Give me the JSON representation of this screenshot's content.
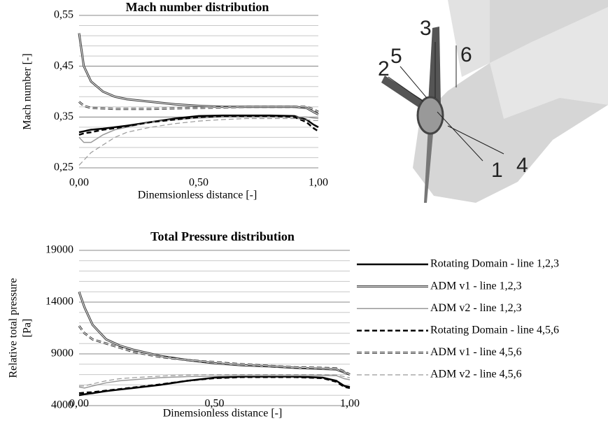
{
  "chart_data": [
    {
      "type": "line",
      "title": "Mach number distribution",
      "xlabel": "Dinemsionless distance [-]",
      "ylabel": "Mach number [-]",
      "x": [
        0,
        0.02,
        0.05,
        0.1,
        0.15,
        0.2,
        0.3,
        0.4,
        0.5,
        0.6,
        0.7,
        0.8,
        0.9,
        0.95,
        0.98,
        1.0
      ],
      "xlim": [
        0,
        1
      ],
      "xticks": [
        {
          "value": 0,
          "label": "0,00"
        },
        {
          "value": 0.5,
          "label": "0,50"
        },
        {
          "value": 1,
          "label": "1,00"
        }
      ],
      "ylim": [
        0.25,
        0.55
      ],
      "yticks": [
        {
          "value": 0.25,
          "label": "0,25"
        },
        {
          "value": 0.35,
          "label": "0,35"
        },
        {
          "value": 0.45,
          "label": "0,45"
        },
        {
          "value": 0.55,
          "label": "0,55"
        }
      ],
      "grid": true,
      "minor_step": 0.02,
      "series": [
        {
          "color": "#000000",
          "style": "solid",
          "width": 2.5,
          "values": [
            0.32,
            0.322,
            0.325,
            0.327,
            0.33,
            0.333,
            0.34,
            0.347,
            0.352,
            0.353,
            0.353,
            0.353,
            0.352,
            0.345,
            0.335,
            0.33
          ]
        },
        {
          "color": "#333333",
          "style": "double",
          "width": 3,
          "values": [
            0.515,
            0.45,
            0.42,
            0.4,
            0.39,
            0.385,
            0.38,
            0.375,
            0.372,
            0.37,
            0.37,
            0.37,
            0.37,
            0.368,
            0.36,
            0.355
          ]
        },
        {
          "color": "#999999",
          "style": "solid",
          "width": 1.5,
          "values": [
            0.31,
            0.3,
            0.3,
            0.315,
            0.325,
            0.33,
            0.34,
            0.345,
            0.348,
            0.35,
            0.35,
            0.35,
            0.35,
            0.35,
            0.348,
            0.347
          ]
        },
        {
          "color": "#000000",
          "style": "dashed",
          "width": 2.5,
          "values": [
            0.315,
            0.318,
            0.32,
            0.325,
            0.328,
            0.332,
            0.34,
            0.345,
            0.35,
            0.352,
            0.352,
            0.352,
            0.35,
            0.34,
            0.328,
            0.322
          ]
        },
        {
          "color": "#333333",
          "style": "double-dashed",
          "width": 3,
          "values": [
            0.38,
            0.372,
            0.368,
            0.367,
            0.366,
            0.366,
            0.366,
            0.367,
            0.368,
            0.369,
            0.37,
            0.37,
            0.37,
            0.37,
            0.365,
            0.36
          ]
        },
        {
          "color": "#999999",
          "style": "dashed",
          "width": 1.2,
          "values": [
            0.255,
            0.265,
            0.28,
            0.295,
            0.31,
            0.32,
            0.33,
            0.337,
            0.342,
            0.345,
            0.347,
            0.347,
            0.347,
            0.345,
            0.343,
            0.343
          ]
        }
      ]
    },
    {
      "type": "line",
      "title": "Total Pressure distribution",
      "xlabel": "Dinemsionless distance [-]",
      "ylabel_lines": [
        "Relative total pressure",
        "[Pa]"
      ],
      "x": [
        0,
        0.02,
        0.05,
        0.1,
        0.15,
        0.2,
        0.3,
        0.4,
        0.5,
        0.6,
        0.7,
        0.8,
        0.9,
        0.95,
        0.98,
        1.0
      ],
      "xlim": [
        0,
        1
      ],
      "xticks": [
        {
          "value": 0,
          "label": "0,00"
        },
        {
          "value": 0.5,
          "label": "0,50"
        },
        {
          "value": 1,
          "label": "1,00"
        }
      ],
      "ylim": [
        4000,
        19000
      ],
      "yticks": [
        4000,
        9000,
        14000,
        19000
      ],
      "grid": true,
      "minor_step": 1000,
      "series": [
        {
          "name": "Rotating Domain - line 1,2,3",
          "color": "#000000",
          "style": "solid",
          "width": 2.5,
          "values": [
            5000,
            5100,
            5200,
            5400,
            5550,
            5700,
            6000,
            6400,
            6700,
            6800,
            6800,
            6800,
            6700,
            6400,
            5900,
            5800
          ]
        },
        {
          "name": "ADM v1 - line 1,2,3",
          "color": "#333333",
          "style": "double",
          "width": 3,
          "values": [
            15000,
            13500,
            11800,
            10400,
            9800,
            9400,
            8800,
            8400,
            8100,
            7900,
            7800,
            7650,
            7550,
            7500,
            7200,
            7000
          ]
        },
        {
          "name": "ADM v2 - line 1,2,3",
          "color": "#999999",
          "style": "solid",
          "width": 1.5,
          "values": [
            5800,
            5700,
            5900,
            6200,
            6400,
            6500,
            6700,
            6800,
            6850,
            6900,
            6900,
            6900,
            6900,
            6900,
            6600,
            6500
          ]
        },
        {
          "name": "Rotating Domain - line 4,5,6",
          "color": "#000000",
          "style": "dashed",
          "width": 2.5,
          "values": [
            5200,
            5250,
            5300,
            5450,
            5600,
            5750,
            6050,
            6400,
            6650,
            6750,
            6750,
            6750,
            6650,
            6300,
            5800,
            5700
          ]
        },
        {
          "name": "ADM v1 - line 4,5,6",
          "color": "#333333",
          "style": "double-dashed",
          "width": 3,
          "values": [
            11700,
            11000,
            10400,
            10000,
            9600,
            9200,
            8700,
            8400,
            8200,
            8000,
            7850,
            7700,
            7650,
            7600,
            7300,
            7000
          ]
        },
        {
          "name": "ADM v2 - line 4,5,6",
          "color": "#999999",
          "style": "dashed",
          "width": 1.2,
          "values": [
            5900,
            5900,
            6100,
            6400,
            6600,
            6700,
            6850,
            6950,
            7000,
            7000,
            7000,
            7000,
            7000,
            6950,
            6800,
            6700
          ]
        }
      ]
    }
  ],
  "diagram": {
    "labels": [
      "1",
      "2",
      "3",
      "4",
      "5",
      "6"
    ]
  }
}
